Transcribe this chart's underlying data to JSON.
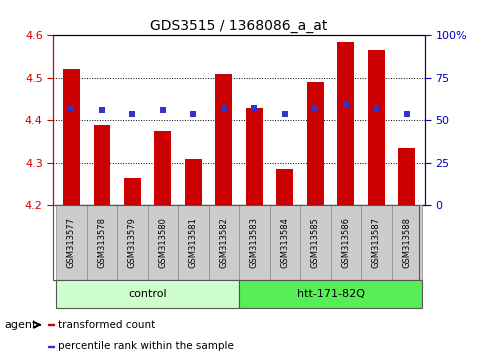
{
  "title": "GDS3515 / 1368086_a_at",
  "samples": [
    "GSM313577",
    "GSM313578",
    "GSM313579",
    "GSM313580",
    "GSM313581",
    "GSM313582",
    "GSM313583",
    "GSM313584",
    "GSM313585",
    "GSM313586",
    "GSM313587",
    "GSM313588"
  ],
  "bar_values": [
    4.52,
    4.39,
    4.265,
    4.375,
    4.31,
    4.51,
    4.43,
    4.285,
    4.49,
    4.585,
    4.565,
    4.335
  ],
  "percentile_values": [
    4.43,
    4.425,
    4.415,
    4.425,
    4.415,
    4.43,
    4.43,
    4.415,
    4.43,
    4.435,
    4.43,
    4.415
  ],
  "y_min": 4.2,
  "y_max": 4.6,
  "y_ticks": [
    4.2,
    4.3,
    4.4,
    4.5,
    4.6
  ],
  "y2_ticks": [
    0,
    25,
    50,
    75,
    100
  ],
  "bar_color": "#cc0000",
  "percentile_color": "#3333cc",
  "bar_width": 0.55,
  "groups": [
    {
      "label": "control",
      "indices": [
        0,
        1,
        2,
        3,
        4,
        5
      ],
      "color": "#ccffcc"
    },
    {
      "label": "htt-171-82Q",
      "indices": [
        6,
        7,
        8,
        9,
        10,
        11
      ],
      "color": "#55ee55"
    }
  ],
  "agent_label": "agent",
  "legend_items": [
    {
      "label": "transformed count",
      "color": "#cc0000"
    },
    {
      "label": "percentile rank within the sample",
      "color": "#3333cc"
    }
  ],
  "title_fontsize": 10,
  "tick_fontsize": 8,
  "sample_fontsize": 6,
  "group_fontsize": 8,
  "legend_fontsize": 7.5,
  "bar_color_left_axis": "#cc0000",
  "right_axis_color": "#0000cc",
  "sample_box_color": "#cccccc",
  "plot_bg_color": "#ffffff"
}
